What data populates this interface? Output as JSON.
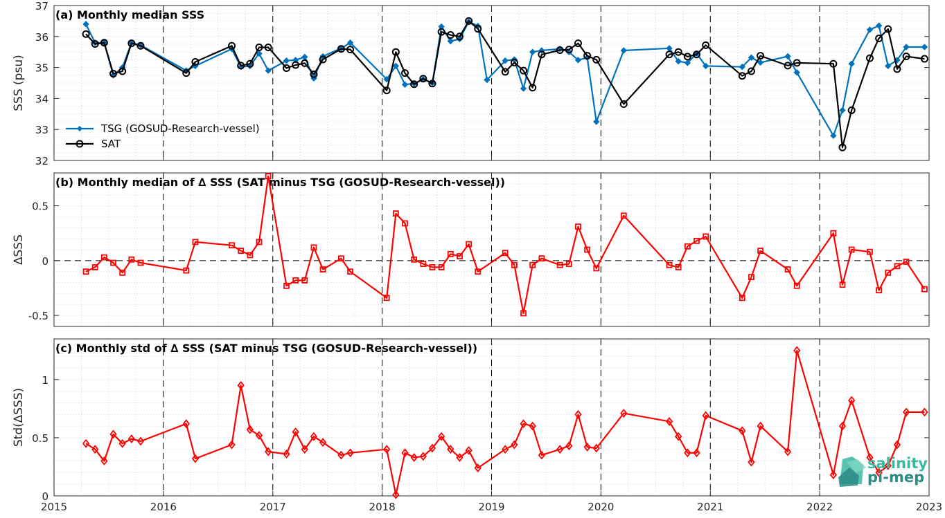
{
  "chart_data": [
    {
      "type": "line",
      "title": "(a) Monthly median SSS",
      "ylabel": "SSS (psu)",
      "ylim": [
        32,
        37
      ],
      "yticks": [
        "32",
        "33",
        "34",
        "35",
        "36",
        "37"
      ],
      "x_range": [
        "2015-01",
        "2023-01"
      ],
      "xticks": [
        "2015",
        "2016",
        "2017",
        "2018",
        "2019",
        "2020",
        "2021",
        "2022",
        "2023"
      ],
      "legend_position": "lower-left",
      "grid": true,
      "series": [
        {
          "name": "TSG (GOSUD-Research-vessel)",
          "color": "#0072bd",
          "marker": "filled-dot",
          "x": [
            "2015-04",
            "2015-05",
            "2015-06",
            "2015-07",
            "2015-08",
            "2015-09",
            "2015-10",
            "2016-03",
            "2016-04",
            "2016-08",
            "2016-09",
            "2016-10",
            "2016-11",
            "2016-12",
            "2017-02",
            "2017-03",
            "2017-04",
            "2017-05",
            "2017-06",
            "2017-08",
            "2017-09",
            "2018-01",
            "2018-02",
            "2018-03",
            "2018-04",
            "2018-05",
            "2018-06",
            "2018-07",
            "2018-08",
            "2018-09",
            "2018-10",
            "2018-11",
            "2018-12",
            "2019-02",
            "2019-03",
            "2019-04",
            "2019-05",
            "2019-06",
            "2019-08",
            "2019-09",
            "2019-10",
            "2019-11",
            "2019-12",
            "2020-03",
            "2020-08",
            "2020-09",
            "2020-10",
            "2020-11",
            "2020-12",
            "2021-04",
            "2021-05",
            "2021-06",
            "2021-09",
            "2021-10",
            "2022-02",
            "2022-03",
            "2022-04",
            "2022-06",
            "2022-07",
            "2022-08",
            "2022-09",
            "2022-10",
            "2022-12"
          ],
          "values": [
            36.4,
            35.8,
            35.8,
            34.75,
            35,
            35.8,
            35.72,
            34.9,
            35.05,
            35.6,
            35.02,
            35.05,
            35.45,
            34.9,
            35.22,
            35.24,
            35.34,
            34.65,
            35.36,
            35.62,
            35.8,
            34.62,
            35.05,
            34.45,
            34.48,
            34.62,
            34.5,
            36.32,
            35.85,
            35.92,
            36.48,
            36.34,
            34.6,
            35.22,
            35.26,
            34.32,
            35.5,
            35.55,
            35.6,
            35.5,
            35.24,
            35.32,
            33.25,
            35.55,
            35.62,
            35.2,
            35.15,
            35.45,
            35.05,
            35.02,
            35.32,
            35.16,
            35.36,
            34.84,
            32.8,
            33.62,
            35.12,
            36.22,
            36.35,
            35.05,
            35.24,
            35.66,
            35.66
          ],
          "x_count": 63
        },
        {
          "name": "SAT",
          "color": "#000000",
          "marker": "open-circle",
          "x": [
            "2015-04",
            "2015-05",
            "2015-06",
            "2015-07",
            "2015-08",
            "2015-09",
            "2015-10",
            "2016-03",
            "2016-04",
            "2016-08",
            "2016-09",
            "2016-10",
            "2016-11",
            "2016-12",
            "2017-02",
            "2017-03",
            "2017-04",
            "2017-05",
            "2017-06",
            "2017-08",
            "2017-09",
            "2018-01",
            "2018-02",
            "2018-03",
            "2018-04",
            "2018-05",
            "2018-06",
            "2018-07",
            "2018-08",
            "2018-09",
            "2018-10",
            "2018-11",
            "2019-02",
            "2019-03",
            "2019-04",
            "2019-05",
            "2019-06",
            "2019-08",
            "2019-09",
            "2019-10",
            "2019-11",
            "2019-12",
            "2020-03",
            "2020-08",
            "2020-09",
            "2020-10",
            "2020-11",
            "2020-12",
            "2021-04",
            "2021-05",
            "2021-06",
            "2021-09",
            "2021-10",
            "2022-02",
            "2022-03",
            "2022-04",
            "2022-06",
            "2022-07",
            "2022-08",
            "2022-09",
            "2022-10",
            "2022-12"
          ],
          "values": [
            36.08,
            35.76,
            35.8,
            34.8,
            34.88,
            35.78,
            35.7,
            34.82,
            35.18,
            35.7,
            35.06,
            35.12,
            35.65,
            35.65,
            34.98,
            35.08,
            35.14,
            34.78,
            35.26,
            35.6,
            35.58,
            34.26,
            35.5,
            34.82,
            34.46,
            34.64,
            34.48,
            36.15,
            36.05,
            36.0,
            36.5,
            36.25,
            34.86,
            35.16,
            34.9,
            34.35,
            35.42,
            35.56,
            35.58,
            35.78,
            35.38,
            35.25,
            33.82,
            35.42,
            35.5,
            35.35,
            35.42,
            35.72,
            34.73,
            34.88,
            35.38,
            35.06,
            35.15,
            35.12,
            32.42,
            33.62,
            35.3,
            35.94,
            36.24,
            34.95,
            35.36,
            35.28
          ]
        }
      ]
    },
    {
      "type": "line",
      "title": "(b) Monthly median of ∆ SSS (SAT minus TSG (GOSUD-Research-vessel))",
      "ylabel": "∆SSS",
      "ylim": [
        -0.6,
        0.8
      ],
      "yticks": [
        "-0.5",
        "0",
        "0.5"
      ],
      "xticks": [
        "2015",
        "2016",
        "2017",
        "2018",
        "2019",
        "2020",
        "2021",
        "2022",
        "2023"
      ],
      "reference_line": 0,
      "grid": true,
      "series": [
        {
          "name": "",
          "color": "#ff0000",
          "marker": "open-square",
          "x": [
            "2015-04",
            "2015-05",
            "2015-06",
            "2015-07",
            "2015-08",
            "2015-09",
            "2015-10",
            "2016-03",
            "2016-04",
            "2016-08",
            "2016-09",
            "2016-10",
            "2016-11",
            "2016-12",
            "2017-02",
            "2017-03",
            "2017-04",
            "2017-05",
            "2017-06",
            "2017-08",
            "2017-09",
            "2018-01",
            "2018-02",
            "2018-03",
            "2018-04",
            "2018-05",
            "2018-06",
            "2018-07",
            "2018-08",
            "2018-09",
            "2018-10",
            "2018-11",
            "2019-02",
            "2019-03",
            "2019-04",
            "2019-05",
            "2019-06",
            "2019-08",
            "2019-09",
            "2019-10",
            "2019-11",
            "2019-12",
            "2020-03",
            "2020-08",
            "2020-09",
            "2020-10",
            "2020-11",
            "2020-12",
            "2021-04",
            "2021-05",
            "2021-06",
            "2021-09",
            "2021-10",
            "2022-02",
            "2022-03",
            "2022-04",
            "2022-06",
            "2022-07",
            "2022-08",
            "2022-09",
            "2022-10",
            "2022-12"
          ],
          "values": [
            -0.1,
            -0.06,
            0.03,
            -0.02,
            -0.11,
            0.01,
            -0.02,
            -0.09,
            0.17,
            0.14,
            0.09,
            0.05,
            0.17,
            0.77,
            -0.23,
            -0.18,
            -0.18,
            0.12,
            -0.08,
            0.02,
            -0.1,
            -0.34,
            0.43,
            0.34,
            0.01,
            -0.03,
            -0.06,
            -0.06,
            0.06,
            0.04,
            0.15,
            -0.1,
            0.07,
            -0.04,
            -0.48,
            -0.04,
            0.02,
            -0.04,
            -0.03,
            0.31,
            0.1,
            -0.07,
            0.41,
            -0.04,
            -0.06,
            0.13,
            0.18,
            0.22,
            -0.34,
            -0.15,
            0.09,
            -0.08,
            -0.23,
            0.25,
            -0.22,
            0.1,
            0.08,
            -0.27,
            -0.11,
            -0.05,
            -0.01,
            -0.26
          ]
        }
      ]
    },
    {
      "type": "line",
      "title": "(c) Monthly std of ∆ SSS (SAT minus TSG (GOSUD-Research-vessel))",
      "ylabel": "Std(∆SSS)",
      "ylim": [
        0,
        1.35
      ],
      "yticks": [
        "0",
        "0.5",
        "1"
      ],
      "xticks": [
        "2015",
        "2016",
        "2017",
        "2018",
        "2019",
        "2020",
        "2021",
        "2022",
        "2023"
      ],
      "grid": true,
      "series": [
        {
          "name": "",
          "color": "#ff0000",
          "marker": "open-diamond",
          "x": [
            "2015-04",
            "2015-05",
            "2015-06",
            "2015-07",
            "2015-08",
            "2015-09",
            "2015-10",
            "2016-03",
            "2016-04",
            "2016-08",
            "2016-09",
            "2016-10",
            "2016-11",
            "2016-12",
            "2017-02",
            "2017-03",
            "2017-04",
            "2017-05",
            "2017-06",
            "2017-08",
            "2017-09",
            "2018-01",
            "2018-02",
            "2018-03",
            "2018-04",
            "2018-05",
            "2018-06",
            "2018-07",
            "2018-08",
            "2018-09",
            "2018-10",
            "2018-11",
            "2019-02",
            "2019-03",
            "2019-04",
            "2019-05",
            "2019-06",
            "2019-08",
            "2019-09",
            "2019-10",
            "2019-11",
            "2019-12",
            "2020-03",
            "2020-08",
            "2020-09",
            "2020-10",
            "2020-11",
            "2020-12",
            "2021-04",
            "2021-05",
            "2021-06",
            "2021-09",
            "2021-10",
            "2022-02",
            "2022-03",
            "2022-04",
            "2022-06",
            "2022-07",
            "2022-08",
            "2022-09",
            "2022-10",
            "2022-12"
          ],
          "values": [
            0.45,
            0.4,
            0.3,
            0.53,
            0.45,
            0.49,
            0.47,
            0.62,
            0.32,
            0.44,
            0.95,
            0.57,
            0.52,
            0.38,
            0.36,
            0.55,
            0.4,
            0.51,
            0.46,
            0.35,
            0.37,
            0.4,
            0.01,
            0.37,
            0.33,
            0.34,
            0.41,
            0.51,
            0.4,
            0.33,
            0.39,
            0.24,
            0.4,
            0.44,
            0.62,
            0.6,
            0.35,
            0.4,
            0.43,
            0.7,
            0.42,
            0.41,
            0.71,
            0.64,
            0.51,
            0.37,
            0.37,
            0.69,
            0.56,
            0.29,
            0.6,
            0.38,
            1.25,
            0.18,
            0.6,
            0.82,
            0.33,
            0.2,
            0.26,
            0.44,
            0.72,
            0.72
          ]
        }
      ]
    }
  ],
  "logo": {
    "line1": "salinity",
    "line2": "pi-mep"
  }
}
